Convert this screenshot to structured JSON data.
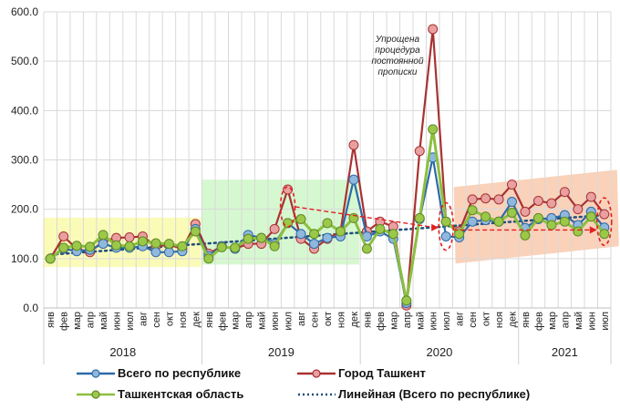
{
  "chart_data": {
    "type": "line",
    "title": "",
    "xlabel": "",
    "ylabel": "",
    "ylim": [
      0,
      600
    ],
    "yticks": [
      "0.0",
      "100.0",
      "200.0",
      "300.0",
      "400.0",
      "500.0",
      "600.0"
    ],
    "grid": true,
    "legend_position": "bottom",
    "years": [
      {
        "label": "2018",
        "months": 12
      },
      {
        "label": "2019",
        "months": 12
      },
      {
        "label": "2020",
        "months": 12
      },
      {
        "label": "2021",
        "months": 7
      }
    ],
    "categories": [
      "янв",
      "фев",
      "мар",
      "апр",
      "май",
      "июн",
      "июл",
      "авг",
      "сен",
      "окт",
      "ноя",
      "дек",
      "янв",
      "фев",
      "мар",
      "апр",
      "май",
      "июн",
      "июл",
      "авг",
      "сен",
      "окт",
      "ноя",
      "дек",
      "янв",
      "фев",
      "мар",
      "апр",
      "май",
      "июн",
      "июл",
      "авг",
      "сен",
      "окт",
      "ноя",
      "дек",
      "янв",
      "фев",
      "мар",
      "апр",
      "май",
      "июн",
      "июл"
    ],
    "series": [
      {
        "name": "Всего по республике",
        "color": "#2e6aa8",
        "marker": "#8fb8dc",
        "values": [
          100,
          120,
          115,
          118,
          130,
          122,
          122,
          125,
          113,
          113,
          115,
          160,
          105,
          125,
          120,
          148,
          142,
          130,
          172,
          150,
          130,
          142,
          145,
          260,
          145,
          155,
          140,
          10,
          180,
          305,
          145,
          143,
          175,
          178,
          175,
          215,
          162,
          180,
          182,
          188,
          168,
          195,
          163
        ]
      },
      {
        "name": "Город Ташкент",
        "color": "#a83232",
        "marker": "#e8a0a0",
        "values": [
          100,
          145,
          120,
          113,
          135,
          142,
          143,
          145,
          125,
          128,
          120,
          170,
          110,
          125,
          120,
          130,
          130,
          160,
          240,
          140,
          120,
          140,
          155,
          330,
          155,
          175,
          165,
          5,
          318,
          565,
          175,
          155,
          220,
          222,
          220,
          250,
          195,
          217,
          212,
          235,
          200,
          225,
          190
        ]
      },
      {
        "name": "Ташкентская область",
        "color": "#8cbf3f",
        "marker": "#9cc84a",
        "values": [
          100,
          122,
          126,
          124,
          148,
          127,
          125,
          135,
          131,
          130,
          125,
          155,
          100,
          123,
          122,
          140,
          142,
          125,
          172,
          180,
          150,
          172,
          155,
          182,
          120,
          160,
          150,
          15,
          182,
          362,
          175,
          150,
          198,
          185,
          175,
          193,
          147,
          182,
          168,
          175,
          155,
          185,
          150
        ]
      }
    ],
    "trendline": {
      "name": "Линейная (Всего по республике)",
      "color": "#1f4e79",
      "start": 108,
      "end": 188
    },
    "annotations": {
      "note": [
        "Упрощена",
        "процедура",
        "постоянной",
        "прописки"
      ]
    },
    "highlight_colors": [
      "#fafaa0",
      "#c8f5c0",
      "#f9c6a8"
    ]
  },
  "legend": {
    "items": [
      {
        "label": "Всего по республике"
      },
      {
        "label": "Город Ташкент"
      },
      {
        "label": "Ташкентская область"
      },
      {
        "label": "Линейная (Всего по республике)"
      }
    ]
  }
}
